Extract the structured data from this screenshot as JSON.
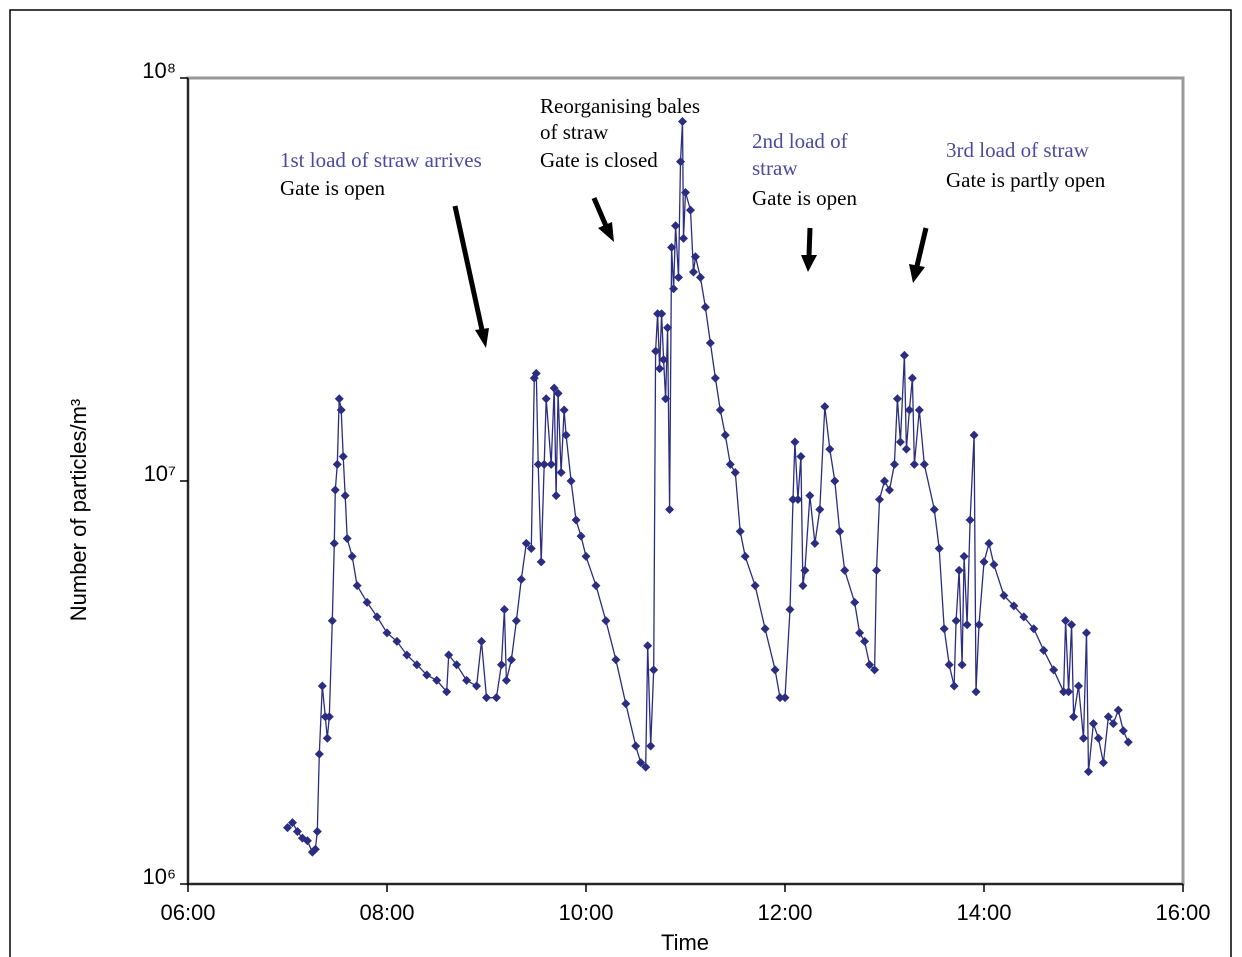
{
  "chart_data": {
    "type": "scatter-line",
    "x_label": "Time",
    "y_label": "Number of particles/m³",
    "log_y": true,
    "color": "#2b2d80",
    "xlim": [
      6,
      16
    ],
    "xticks": [
      {
        "value": 6,
        "label": "06:00"
      },
      {
        "value": 8,
        "label": "08:00"
      },
      {
        "value": 10,
        "label": "10:00"
      },
      {
        "value": 12,
        "label": "12:00"
      },
      {
        "value": 14,
        "label": "14:00"
      },
      {
        "value": 16,
        "label": "16:00"
      }
    ],
    "ylim": [
      1000000,
      100000000
    ],
    "yticks": [
      {
        "value": 1000000,
        "label": "10⁶"
      },
      {
        "value": 10000000,
        "label": "10⁷"
      },
      {
        "value": 100000000,
        "label": "10⁸"
      }
    ],
    "annotations": [
      {
        "text": "1st load of straw arrives",
        "color": "#4a4aa0"
      },
      {
        "text": "Gate is open",
        "color": "#000000"
      },
      {
        "text": "Reorganising bales",
        "color": "#000000"
      },
      {
        "text": "of straw",
        "color": "#000000"
      },
      {
        "text": "Gate is closed",
        "color": "#000000"
      },
      {
        "text": "2nd load of",
        "color": "#4a4aa0"
      },
      {
        "text": "straw",
        "color": "#4a4aa0"
      },
      {
        "text": "Gate is open",
        "color": "#000000"
      },
      {
        "text": "3rd load of straw",
        "color": "#4a4aa0"
      },
      {
        "text": "Gate is partly open",
        "color": "#000000"
      }
    ],
    "x": [
      7.0,
      7.05,
      7.1,
      7.15,
      7.2,
      7.25,
      7.28,
      7.3,
      7.32,
      7.35,
      7.38,
      7.4,
      7.42,
      7.45,
      7.47,
      7.48,
      7.5,
      7.52,
      7.54,
      7.56,
      7.58,
      7.6,
      7.65,
      7.7,
      7.8,
      7.9,
      8.0,
      8.1,
      8.2,
      8.3,
      8.4,
      8.5,
      8.6,
      8.62,
      8.7,
      8.8,
      8.9,
      8.95,
      9.0,
      9.1,
      9.15,
      9.18,
      9.2,
      9.25,
      9.3,
      9.35,
      9.4,
      9.45,
      9.48,
      9.5,
      9.52,
      9.55,
      9.58,
      9.6,
      9.65,
      9.68,
      9.7,
      9.72,
      9.75,
      9.78,
      9.8,
      9.85,
      9.9,
      9.95,
      10.0,
      10.1,
      10.2,
      10.3,
      10.4,
      10.5,
      10.55,
      10.6,
      10.62,
      10.65,
      10.68,
      10.7,
      10.72,
      10.74,
      10.76,
      10.78,
      10.8,
      10.82,
      10.84,
      10.86,
      10.88,
      10.9,
      10.93,
      10.95,
      10.97,
      10.98,
      11.0,
      11.05,
      11.08,
      11.1,
      11.15,
      11.2,
      11.25,
      11.3,
      11.35,
      11.4,
      11.45,
      11.5,
      11.55,
      11.6,
      11.7,
      11.8,
      11.9,
      11.95,
      12.0,
      12.05,
      12.08,
      12.1,
      12.13,
      12.16,
      12.18,
      12.2,
      12.25,
      12.3,
      12.35,
      12.4,
      12.45,
      12.5,
      12.55,
      12.6,
      12.7,
      12.75,
      12.8,
      12.85,
      12.9,
      12.92,
      12.95,
      13.0,
      13.05,
      13.1,
      13.13,
      13.16,
      13.2,
      13.22,
      13.25,
      13.28,
      13.3,
      13.35,
      13.4,
      13.5,
      13.55,
      13.6,
      13.65,
      13.7,
      13.72,
      13.75,
      13.78,
      13.8,
      13.83,
      13.86,
      13.9,
      13.92,
      13.95,
      14.0,
      14.05,
      14.1,
      14.2,
      14.3,
      14.4,
      14.5,
      14.6,
      14.7,
      14.8,
      14.82,
      14.85,
      14.88,
      14.9,
      14.95,
      15.0,
      15.03,
      15.05,
      15.1,
      15.15,
      15.2,
      15.25,
      15.3,
      15.35,
      15.4,
      15.45
    ],
    "values": [
      1380000,
      1420000,
      1350000,
      1300000,
      1280000,
      1200000,
      1220000,
      1350000,
      2100000,
      3100000,
      2600000,
      2300000,
      2600000,
      4500000,
      7000000,
      9500000,
      11000000,
      16000000,
      15000000,
      11500000,
      9200000,
      7200000,
      6500000,
      5500000,
      5000000,
      4600000,
      4200000,
      4000000,
      3700000,
      3500000,
      3300000,
      3200000,
      3000000,
      3700000,
      3500000,
      3200000,
      3100000,
      4000000,
      2900000,
      2900000,
      3500000,
      4800000,
      3200000,
      3600000,
      4500000,
      5700000,
      7000000,
      6800000,
      18000000,
      18500000,
      11000000,
      6300000,
      11000000,
      16000000,
      11000000,
      17000000,
      9200000,
      16500000,
      10500000,
      15000000,
      13000000,
      10000000,
      8000000,
      7300000,
      6500000,
      5500000,
      4500000,
      3600000,
      2800000,
      2200000,
      2000000,
      1950000,
      3900000,
      2200000,
      3400000,
      21000000,
      26000000,
      19000000,
      26000000,
      20000000,
      16000000,
      24000000,
      8500000,
      38000000,
      30000000,
      43000000,
      32000000,
      62000000,
      78000000,
      40000000,
      52000000,
      47000000,
      33000000,
      36000000,
      32000000,
      27000000,
      22000000,
      18000000,
      15000000,
      13000000,
      11000000,
      10500000,
      7500000,
      6500000,
      5500000,
      4300000,
      3400000,
      2900000,
      2900000,
      4800000,
      9000000,
      12500000,
      9000000,
      11500000,
      5500000,
      6000000,
      9200000,
      7000000,
      8500000,
      15300000,
      12000000,
      10000000,
      7500000,
      6000000,
      5000000,
      4200000,
      4000000,
      3500000,
      3400000,
      6000000,
      9000000,
      10000000,
      9500000,
      11000000,
      16000000,
      12500000,
      20500000,
      12000000,
      15000000,
      18000000,
      11000000,
      15000000,
      11000000,
      8500000,
      6800000,
      4300000,
      3500000,
      3100000,
      4500000,
      6000000,
      3500000,
      6500000,
      4400000,
      8000000,
      13000000,
      3000000,
      4400000,
      6300000,
      7000000,
      6200000,
      5200000,
      4900000,
      4600000,
      4300000,
      3800000,
      3400000,
      3000000,
      4500000,
      3000000,
      4400000,
      2600000,
      3100000,
      2300000,
      4200000,
      1900000,
      2500000,
      2300000,
      2000000,
      2600000,
      2500000,
      2700000,
      2400000,
      2250000
    ]
  }
}
